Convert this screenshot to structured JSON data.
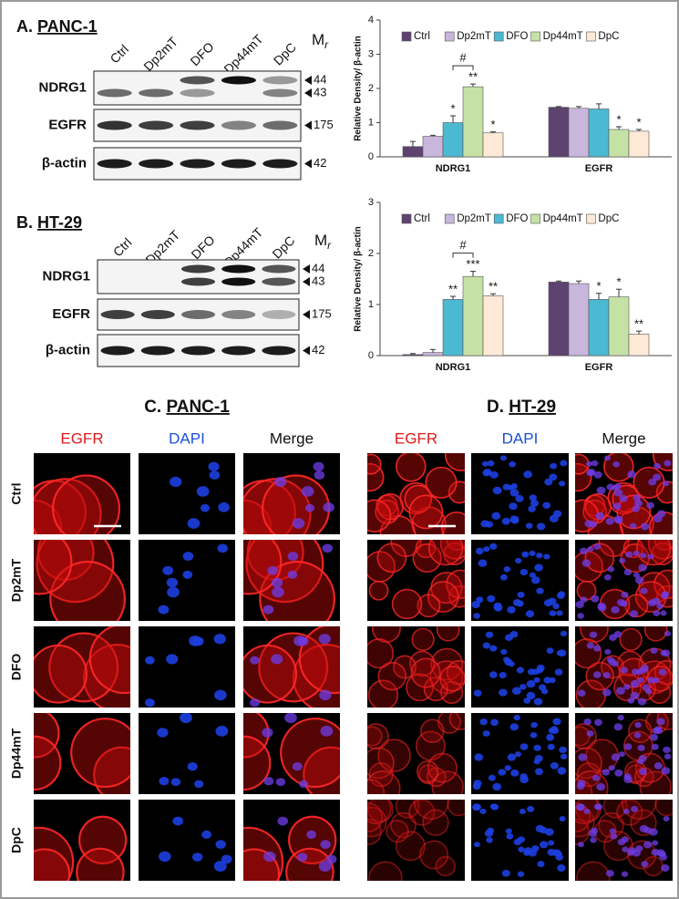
{
  "blots": [
    {
      "letter": "A.",
      "name": "PANC-1",
      "lanes": [
        "Ctrl",
        "Dp2mT",
        "DFO",
        "Dp44mT",
        "DpC"
      ],
      "mr": "M",
      "mr_sub": "r",
      "rows": [
        {
          "name": "NDRG1",
          "markers": [
            44,
            43
          ]
        },
        {
          "name": "EGFR",
          "markers": [
            175
          ]
        },
        {
          "name": "β-actin",
          "markers": [
            42
          ]
        }
      ]
    },
    {
      "letter": "B.",
      "name": "HT-29",
      "lanes": [
        "Ctrl",
        "Dp2mT",
        "DFO",
        "Dp44mT",
        "DpC"
      ],
      "mr": "M",
      "mr_sub": "r",
      "rows": [
        {
          "name": "NDRG1",
          "markers": [
            44,
            43
          ]
        },
        {
          "name": "EGFR",
          "markers": [
            175
          ]
        },
        {
          "name": "β-actin",
          "markers": [
            42
          ]
        }
      ]
    }
  ],
  "chart_data": [
    {
      "type": "bar",
      "ylabel": "Relative Density/ β-actin",
      "categories": [
        "NDRG1",
        "EGFR"
      ],
      "ylim": [
        0,
        4
      ],
      "yticks": [
        0,
        1,
        2,
        3,
        4
      ],
      "bracket_label": "#",
      "series": [
        {
          "name": "Ctrl",
          "color": "#5e4270",
          "values": [
            0.3,
            1.45
          ],
          "errors": [
            0.15,
            0.02
          ],
          "sig": [
            null,
            null
          ]
        },
        {
          "name": "Dp2mT",
          "color": "#c8b6dc",
          "values": [
            0.6,
            1.42
          ],
          "errors": [
            0.03,
            0.05
          ],
          "sig": [
            null,
            null
          ]
        },
        {
          "name": "DFO",
          "color": "#4cb9d2",
          "values": [
            1.0,
            1.4
          ],
          "errors": [
            0.2,
            0.15
          ],
          "sig": [
            "*",
            null
          ]
        },
        {
          "name": "Dp44mT",
          "color": "#c6e1a6",
          "values": [
            2.05,
            0.8
          ],
          "errors": [
            0.08,
            0.08
          ],
          "sig": [
            "**",
            "*"
          ]
        },
        {
          "name": "DpC",
          "color": "#fde9d5",
          "values": [
            0.7,
            0.75
          ],
          "errors": [
            0.03,
            0.05
          ],
          "sig": [
            "*",
            "*"
          ]
        }
      ]
    },
    {
      "type": "bar",
      "ylabel": "Relative Density/ β-actin",
      "categories": [
        "NDRG1",
        "EGFR"
      ],
      "ylim": [
        0,
        3
      ],
      "yticks": [
        0,
        1,
        2,
        3
      ],
      "bracket_label": "#",
      "series": [
        {
          "name": "Ctrl",
          "color": "#5e4270",
          "values": [
            0.02,
            1.44
          ],
          "errors": [
            0.02,
            0.02
          ],
          "sig": [
            null,
            null
          ]
        },
        {
          "name": "Dp2mT",
          "color": "#c8b6dc",
          "values": [
            0.06,
            1.41
          ],
          "errors": [
            0.06,
            0.05
          ],
          "sig": [
            null,
            null
          ]
        },
        {
          "name": "DFO",
          "color": "#4cb9d2",
          "values": [
            1.1,
            1.1
          ],
          "errors": [
            0.06,
            0.12
          ],
          "sig": [
            "**",
            "*"
          ]
        },
        {
          "name": "Dp44mT",
          "color": "#c6e1a6",
          "values": [
            1.55,
            1.15
          ],
          "errors": [
            0.1,
            0.15
          ],
          "sig": [
            "***",
            "*"
          ]
        },
        {
          "name": "DpC",
          "color": "#fde9d5",
          "values": [
            1.17,
            0.42
          ],
          "errors": [
            0.04,
            0.06
          ],
          "sig": [
            "**",
            "**"
          ]
        }
      ]
    }
  ],
  "microscopy": [
    {
      "letter": "C.",
      "name": "PANC-1",
      "columns": [
        "EGFR",
        "DAPI",
        "Merge"
      ],
      "rows": [
        "Ctrl",
        "Dp2mT",
        "DFO",
        "Dp44mT",
        "DpC"
      ]
    },
    {
      "letter": "D.",
      "name": "HT-29",
      "columns": [
        "EGFR",
        "DAPI",
        "Merge"
      ]
    }
  ]
}
